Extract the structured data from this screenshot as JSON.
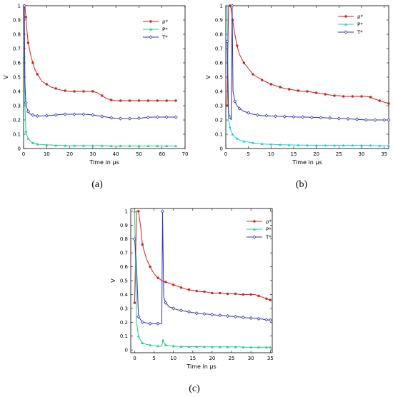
{
  "chart_data": [
    {
      "type": "line",
      "panel_label": "(a)",
      "xlabel": "Time in μs",
      "ylabel": "V",
      "xlim": [
        0,
        70
      ],
      "ylim": [
        0,
        1
      ],
      "xticks": [
        0,
        10,
        20,
        30,
        40,
        50,
        60,
        70
      ],
      "yticks": [
        0,
        0.1,
        0.2,
        0.3,
        0.4,
        0.5,
        0.6,
        0.7,
        0.8,
        0.9,
        1
      ],
      "grid": false,
      "legend": "top-right",
      "series": [
        {
          "name": "ρ*",
          "color": "#cc2222",
          "marker": "circle",
          "x": [
            0.3,
            0.6,
            1,
            1.5,
            2,
            3,
            4,
            5,
            6,
            8,
            10,
            12,
            14,
            16,
            18,
            20,
            22,
            24,
            26,
            28,
            30,
            32,
            34,
            36,
            38,
            40,
            42,
            44,
            46,
            48,
            50,
            52,
            54,
            56,
            58,
            60,
            62,
            64,
            66
          ],
          "y": [
            1,
            1,
            0.92,
            0.82,
            0.74,
            0.66,
            0.6,
            0.55,
            0.52,
            0.47,
            0.45,
            0.43,
            0.42,
            0.41,
            0.405,
            0.4,
            0.4,
            0.4,
            0.4,
            0.4,
            0.4,
            0.39,
            0.37,
            0.35,
            0.34,
            0.335,
            0.335,
            0.335,
            0.335,
            0.335,
            0.335,
            0.335,
            0.335,
            0.335,
            0.335,
            0.335,
            0.335,
            0.335,
            0.335
          ]
        },
        {
          "name": "P*",
          "color": "#22cc88",
          "marker": "triangle",
          "x": [
            0.3,
            0.6,
            1,
            1.5,
            2,
            3,
            4,
            5,
            6,
            8,
            10,
            12,
            14,
            16,
            18,
            20,
            22,
            24,
            26,
            28,
            30,
            32,
            34,
            36,
            38,
            40,
            42,
            44,
            46,
            48,
            50,
            52,
            54,
            56,
            58,
            60,
            62,
            64,
            66
          ],
          "y": [
            0.65,
            0.3,
            0.12,
            0.09,
            0.07,
            0.05,
            0.04,
            0.035,
            0.03,
            0.028,
            0.025,
            0.025,
            0.022,
            0.022,
            0.02,
            0.02,
            0.02,
            0.02,
            0.02,
            0.02,
            0.02,
            0.02,
            0.02,
            0.02,
            0.018,
            0.018,
            0.018,
            0.018,
            0.018,
            0.018,
            0.018,
            0.018,
            0.018,
            0.018,
            0.018,
            0.018,
            0.018,
            0.018,
            0.018
          ]
        },
        {
          "name": "T*",
          "color": "#3333aa",
          "marker": "diamond",
          "x": [
            0.3,
            0.6,
            1,
            1.5,
            2,
            3,
            4,
            5,
            6,
            8,
            10,
            12,
            14,
            16,
            18,
            20,
            22,
            24,
            26,
            28,
            30,
            32,
            34,
            36,
            38,
            40,
            42,
            44,
            46,
            48,
            50,
            52,
            54,
            56,
            58,
            60,
            62,
            64,
            66
          ],
          "y": [
            1,
            0.45,
            0.32,
            0.28,
            0.26,
            0.24,
            0.235,
            0.23,
            0.228,
            0.228,
            0.23,
            0.232,
            0.235,
            0.238,
            0.24,
            0.24,
            0.24,
            0.24,
            0.24,
            0.238,
            0.235,
            0.23,
            0.225,
            0.22,
            0.215,
            0.212,
            0.21,
            0.21,
            0.21,
            0.21,
            0.212,
            0.215,
            0.218,
            0.22,
            0.22,
            0.22,
            0.22,
            0.22,
            0.22
          ]
        }
      ]
    },
    {
      "type": "line",
      "panel_label": "(b)",
      "xlabel": "Time in μs",
      "ylabel": "V",
      "xlim": [
        0,
        36
      ],
      "ylim": [
        0,
        1
      ],
      "xticks": [
        0,
        5,
        10,
        15,
        20,
        25,
        30,
        35
      ],
      "yticks": [
        0,
        0.1,
        0.2,
        0.3,
        0.4,
        0.5,
        0.6,
        0.7,
        0.8,
        0.9,
        1
      ],
      "grid": false,
      "legend": "top-right",
      "series": [
        {
          "name": "ρ*",
          "color": "#cc2222",
          "marker": "circle",
          "x": [
            0.3,
            0.6,
            0.9,
            1.2,
            1.5,
            2,
            2.5,
            3,
            4,
            5,
            6,
            7,
            8,
            9,
            10,
            11,
            12,
            13,
            14,
            15,
            16,
            17,
            18,
            19,
            20,
            21,
            22,
            23,
            24,
            25,
            26,
            27,
            28,
            29,
            30,
            31,
            32,
            33,
            34,
            35,
            36
          ],
          "y": [
            0.3,
            1,
            1,
            0.98,
            0.9,
            0.8,
            0.72,
            0.66,
            0.6,
            0.56,
            0.52,
            0.5,
            0.48,
            0.465,
            0.45,
            0.44,
            0.43,
            0.42,
            0.415,
            0.41,
            0.405,
            0.4,
            0.4,
            0.395,
            0.39,
            0.385,
            0.38,
            0.375,
            0.37,
            0.37,
            0.365,
            0.365,
            0.365,
            0.365,
            0.365,
            0.365,
            0.36,
            0.345,
            0.335,
            0.325,
            0.315
          ]
        },
        {
          "name": "P*",
          "color": "#22cccc",
          "marker": "triangle",
          "x": [
            0.3,
            0.6,
            0.9,
            1.2,
            1.5,
            2,
            2.5,
            3,
            4,
            5,
            6,
            7,
            8,
            9,
            10,
            11,
            12,
            13,
            14,
            15,
            16,
            17,
            18,
            19,
            20,
            21,
            22,
            23,
            24,
            25,
            26,
            27,
            28,
            29,
            30,
            31,
            32,
            33,
            34,
            35,
            36
          ],
          "y": [
            1,
            0.2,
            0.15,
            0.12,
            0.1,
            0.08,
            0.07,
            0.06,
            0.05,
            0.045,
            0.04,
            0.035,
            0.033,
            0.03,
            0.03,
            0.028,
            0.027,
            0.026,
            0.025,
            0.025,
            0.024,
            0.024,
            0.023,
            0.023,
            0.022,
            0.022,
            0.022,
            0.022,
            0.022,
            0.022,
            0.022,
            0.022,
            0.022,
            0.022,
            0.022,
            0.022,
            0.022,
            0.02,
            0.02,
            0.02,
            0.02
          ]
        },
        {
          "name": "T*",
          "color": "#3333aa",
          "marker": "diamond",
          "x": [
            0.3,
            0.6,
            0.9,
            1.2,
            1.4,
            1.6,
            2,
            2.5,
            3,
            4,
            5,
            6,
            7,
            8,
            9,
            10,
            11,
            12,
            13,
            14,
            15,
            16,
            17,
            18,
            19,
            20,
            21,
            22,
            23,
            24,
            25,
            26,
            27,
            28,
            29,
            30,
            31,
            32,
            33,
            34,
            35,
            36
          ],
          "y": [
            0.75,
            0.25,
            0.22,
            0.2,
            1,
            0.4,
            0.33,
            0.3,
            0.28,
            0.26,
            0.25,
            0.24,
            0.235,
            0.23,
            0.23,
            0.228,
            0.226,
            0.225,
            0.224,
            0.222,
            0.222,
            0.22,
            0.22,
            0.22,
            0.218,
            0.218,
            0.216,
            0.215,
            0.214,
            0.212,
            0.21,
            0.21,
            0.208,
            0.206,
            0.204,
            0.202,
            0.2,
            0.2,
            0.2,
            0.2,
            0.2,
            0.2
          ]
        }
      ]
    },
    {
      "type": "line",
      "panel_label": "(c)",
      "xlabel": "Time in μs",
      "ylabel": "V",
      "xlim": [
        -1,
        35.5
      ],
      "ylim": [
        -0.02,
        1.02
      ],
      "xticks": [
        0,
        5,
        10,
        15,
        20,
        25,
        30,
        35
      ],
      "yticks": [
        0,
        0.1,
        0.2,
        0.3,
        0.4,
        0.5,
        0.6,
        0.7,
        0.8,
        0.9,
        1
      ],
      "grid": false,
      "legend": "top-right",
      "series": [
        {
          "name": "ρ*",
          "color": "#cc2222",
          "marker": "circle",
          "x": [
            0,
            0.5,
            1,
            1.5,
            2,
            3,
            4,
            5,
            6,
            7,
            8,
            9,
            10,
            11,
            12,
            13,
            14,
            15,
            16,
            17,
            18,
            19,
            20,
            21,
            22,
            23,
            24,
            25,
            26,
            27,
            28,
            29,
            30,
            31,
            32,
            33,
            34,
            35
          ],
          "y": [
            0.34,
            1,
            1,
            0.9,
            0.76,
            0.66,
            0.6,
            0.55,
            0.52,
            0.5,
            0.49,
            0.48,
            0.47,
            0.46,
            0.45,
            0.44,
            0.435,
            0.43,
            0.425,
            0.42,
            0.42,
            0.415,
            0.41,
            0.41,
            0.41,
            0.405,
            0.405,
            0.405,
            0.405,
            0.4,
            0.4,
            0.4,
            0.4,
            0.4,
            0.39,
            0.38,
            0.37,
            0.36
          ]
        },
        {
          "name": "P*",
          "color": "#22cc88",
          "marker": "triangle",
          "x": [
            0,
            0.5,
            1,
            1.5,
            2,
            3,
            4,
            5,
            6,
            7,
            7.3,
            7.6,
            8,
            9,
            10,
            11,
            12,
            13,
            14,
            15,
            16,
            17,
            18,
            19,
            20,
            21,
            22,
            23,
            24,
            25,
            26,
            27,
            28,
            29,
            30,
            31,
            32,
            33,
            34,
            35
          ],
          "y": [
            1,
            0.2,
            0.1,
            0.07,
            0.05,
            0.04,
            0.035,
            0.03,
            0.028,
            0.028,
            0.07,
            0.05,
            0.035,
            0.03,
            0.028,
            0.026,
            0.025,
            0.025,
            0.024,
            0.024,
            0.024,
            0.023,
            0.023,
            0.022,
            0.022,
            0.022,
            0.022,
            0.022,
            0.022,
            0.022,
            0.022,
            0.022,
            0.02,
            0.02,
            0.02,
            0.02,
            0.02,
            0.02,
            0.02,
            0.02
          ]
        },
        {
          "name": "T*",
          "color": "#3333aa",
          "marker": "diamond",
          "x": [
            0,
            0.5,
            1,
            1.5,
            2,
            3,
            4,
            5,
            6,
            7,
            7.2,
            7.5,
            8,
            9,
            10,
            11,
            12,
            13,
            14,
            15,
            16,
            17,
            18,
            19,
            20,
            21,
            22,
            23,
            24,
            25,
            26,
            27,
            28,
            29,
            30,
            31,
            32,
            33,
            34,
            35
          ],
          "y": [
            0.8,
            0.6,
            0.24,
            0.22,
            0.2,
            0.195,
            0.19,
            0.19,
            0.19,
            0.19,
            1,
            0.38,
            0.34,
            0.31,
            0.3,
            0.29,
            0.285,
            0.28,
            0.275,
            0.27,
            0.265,
            0.262,
            0.26,
            0.258,
            0.255,
            0.252,
            0.25,
            0.248,
            0.245,
            0.242,
            0.24,
            0.238,
            0.235,
            0.232,
            0.23,
            0.228,
            0.225,
            0.222,
            0.218,
            0.215
          ]
        }
      ]
    }
  ]
}
